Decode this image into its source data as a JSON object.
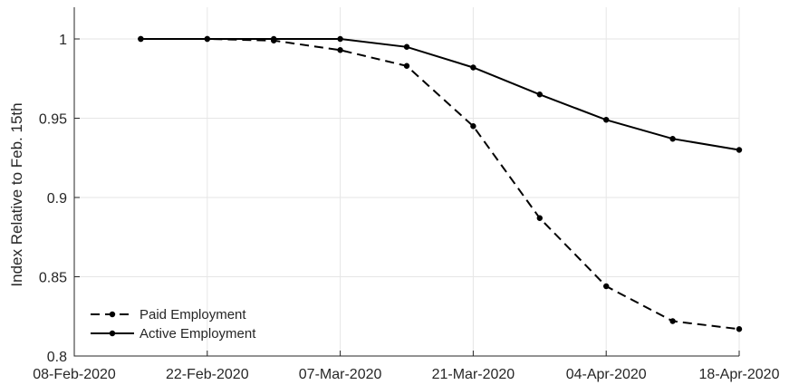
{
  "chart_data": {
    "type": "line",
    "title": "",
    "xlabel": "",
    "ylabel": "Index Relative to Feb. 15th",
    "x_ticks": [
      "08-Feb-2020",
      "22-Feb-2020",
      "07-Mar-2020",
      "21-Mar-2020",
      "04-Apr-2020",
      "18-Apr-2020"
    ],
    "y_ticks": [
      "0.8",
      "0.85",
      "0.9",
      "0.95",
      "1"
    ],
    "xlim": [
      "2020-02-08",
      "2020-04-18"
    ],
    "ylim": [
      0.8,
      1.02
    ],
    "grid": true,
    "legend_position": "bottom-left",
    "x": [
      "2020-02-15",
      "2020-02-22",
      "2020-02-29",
      "2020-03-07",
      "2020-03-14",
      "2020-03-21",
      "2020-03-28",
      "2020-04-04",
      "2020-04-11",
      "2020-04-18"
    ],
    "series": [
      {
        "name": "Paid Employment",
        "style": "dashed",
        "color": "#000000",
        "values": [
          1.0,
          1.0,
          0.999,
          0.993,
          0.983,
          0.945,
          0.887,
          0.844,
          0.822,
          0.817
        ]
      },
      {
        "name": "Active Employment",
        "style": "solid",
        "color": "#000000",
        "values": [
          1.0,
          1.0,
          1.0,
          1.0,
          0.995,
          0.982,
          0.965,
          0.949,
          0.937,
          0.93
        ]
      }
    ]
  }
}
